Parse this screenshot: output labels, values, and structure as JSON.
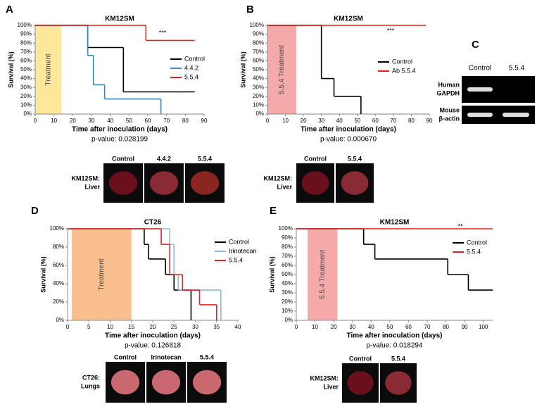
{
  "panels": [
    "A",
    "B",
    "C",
    "D",
    "E"
  ],
  "chart_data": [
    {
      "type": "step",
      "title": "KM12SM",
      "xlabel": "Time after inoculation (days)",
      "ylabel": "Survival (%)",
      "pvalue": "p-value:  0.028199",
      "annotation": "***",
      "treatment": {
        "label": "Treatment",
        "start": 0,
        "end": 14,
        "color": "#fde79a"
      },
      "xlim": [
        0,
        90
      ],
      "xticks": [
        0,
        10,
        20,
        30,
        40,
        50,
        60,
        70,
        80,
        90
      ],
      "ylim": [
        0,
        100
      ],
      "yticks": [
        {
          "value": 0,
          "label": "0%"
        },
        {
          "value": 10,
          "label": "10%"
        },
        {
          "value": 20,
          "label": "20%"
        },
        {
          "value": 30,
          "label": "30%"
        },
        {
          "value": 40,
          "label": "40%"
        },
        {
          "value": 50,
          "label": "50%"
        },
        {
          "value": 60,
          "label": "60%"
        },
        {
          "value": 70,
          "label": "70%"
        },
        {
          "value": 80,
          "label": "80%"
        },
        {
          "value": 90,
          "label": "90%"
        },
        {
          "value": 100,
          "label": "100%"
        }
      ],
      "series": [
        {
          "name": "Control",
          "color": "#000000",
          "x": [
            0,
            28,
            47,
            85
          ],
          "values": [
            100,
            75,
            25,
            25
          ]
        },
        {
          "name": "4.4.2",
          "color": "#3a87b5",
          "x": [
            0,
            28,
            31,
            37,
            67
          ],
          "values": [
            100,
            66,
            33,
            17,
            0
          ]
        },
        {
          "name": "5.5.4",
          "color": "#e8211c",
          "x": [
            0,
            59,
            85
          ],
          "values": [
            100,
            83,
            83
          ]
        }
      ]
    },
    {
      "type": "step",
      "title": "KM12SM",
      "xlabel": "Time after inoculation (days)",
      "ylabel": "Survival (%)",
      "pvalue": "p-value:  0.000670",
      "annotation": "***",
      "treatment": {
        "label": "5.5.4 Treatment",
        "start": 0,
        "end": 16,
        "color": "#f6a9a9"
      },
      "xlim": [
        0,
        90
      ],
      "xticks": [
        0,
        10,
        20,
        30,
        40,
        50,
        60,
        70,
        80,
        90
      ],
      "ylim": [
        0,
        100
      ],
      "yticks": [
        {
          "value": 0,
          "label": "0%"
        },
        {
          "value": 10,
          "label": "10%"
        },
        {
          "value": 20,
          "label": "20%"
        },
        {
          "value": 30,
          "label": "30%"
        },
        {
          "value": 40,
          "label": "40%"
        },
        {
          "value": 50,
          "label": "50%"
        },
        {
          "value": 60,
          "label": "60%"
        },
        {
          "value": 70,
          "label": "70%"
        },
        {
          "value": 80,
          "label": "80%"
        },
        {
          "value": 90,
          "label": "90%"
        },
        {
          "value": 100,
          "label": "100%"
        }
      ],
      "series": [
        {
          "name": "Control",
          "color": "#000000",
          "x": [
            0,
            30,
            37,
            52
          ],
          "values": [
            100,
            40,
            20,
            0
          ]
        },
        {
          "name": "Ab 5.5.4",
          "color": "#e8211c",
          "x": [
            0,
            88
          ],
          "values": [
            100,
            100
          ]
        }
      ]
    },
    {
      "type": "step",
      "title": "CT26",
      "xlabel": "Time after inoculation (days)",
      "ylabel": "Survival (%)",
      "pvalue": "p-value:  0.126818",
      "treatment": {
        "label": "Treatment",
        "start": 1,
        "end": 15,
        "color": "#f9bf8f"
      },
      "xlim": [
        0,
        40
      ],
      "xticks": [
        0,
        5,
        10,
        15,
        20,
        25,
        30,
        35,
        40
      ],
      "ylim": [
        0,
        100
      ],
      "yticks": [
        {
          "value": 0,
          "label": "0%"
        },
        {
          "value": 20,
          "label": "20%"
        },
        {
          "value": 40,
          "label": "40%"
        },
        {
          "value": 60,
          "label": "60%"
        },
        {
          "value": 80,
          "label": "80%"
        },
        {
          "value": 100,
          "label": "100%"
        }
      ],
      "series": [
        {
          "name": "Control",
          "color": "#000000",
          "x": [
            0,
            18,
            19,
            20,
            23,
            25,
            29
          ],
          "values": [
            100,
            83,
            67,
            67,
            50,
            33,
            0
          ]
        },
        {
          "name": "Irinotecan",
          "color": "#8db8de",
          "x": [
            0,
            24,
            25,
            26,
            32,
            36
          ],
          "values": [
            100,
            83,
            50,
            33,
            33,
            0
          ]
        },
        {
          "name": "5.5.4",
          "color": "#e8211c",
          "x": [
            0,
            22,
            24,
            27,
            31,
            35
          ],
          "values": [
            100,
            83,
            50,
            33,
            17,
            0
          ]
        }
      ]
    },
    {
      "type": "step",
      "title": "KM12SM",
      "xlabel": "Time after inoculation  (days)",
      "ylabel": "Survival (%)",
      "pvalue": "p-value:  0.018294",
      "annotation": "**",
      "treatment": {
        "label": "5.5.4 Treatment",
        "start": 6,
        "end": 22,
        "color": "#f6a9a9"
      },
      "xlim": [
        0,
        105
      ],
      "xticks": [
        0,
        10,
        20,
        30,
        40,
        50,
        60,
        70,
        80,
        90,
        100
      ],
      "ylim": [
        0,
        100
      ],
      "yticks": [
        {
          "value": 0,
          "label": "0%"
        },
        {
          "value": 10,
          "label": "10%"
        },
        {
          "value": 20,
          "label": "20%"
        },
        {
          "value": 30,
          "label": "30%"
        },
        {
          "value": 40,
          "label": "40%"
        },
        {
          "value": 50,
          "label": "50%"
        },
        {
          "value": 60,
          "label": "60%"
        },
        {
          "value": 70,
          "label": "70%"
        },
        {
          "value": 80,
          "label": "80%"
        },
        {
          "value": 90,
          "label": "90%"
        },
        {
          "value": 100,
          "label": "100%"
        }
      ],
      "series": [
        {
          "name": "Control",
          "color": "#000000",
          "x": [
            0,
            36,
            42,
            81,
            92,
            105
          ],
          "values": [
            100,
            83,
            67,
            50,
            33,
            33
          ]
        },
        {
          "name": "5.5.4",
          "color": "#e8211c",
          "x": [
            0,
            105
          ],
          "values": [
            100,
            100
          ]
        }
      ]
    }
  ],
  "photos": [
    {
      "row_label": [
        "KM12SM:",
        "Liver"
      ],
      "columns": [
        "Control",
        "4.4.2",
        "5.5.4"
      ]
    },
    {
      "row_label": [
        "KM12SM:",
        "Liver"
      ],
      "columns": [
        "Control",
        "5.5.4"
      ]
    },
    {
      "row_label": [
        "CT26:",
        "Lungs"
      ],
      "columns": [
        "Control",
        "Irinotecan",
        "5.5.4"
      ]
    },
    {
      "row_label": [
        "KM12SM:",
        "Liver"
      ],
      "columns": [
        "Control",
        "5.5.4"
      ]
    }
  ],
  "gel": {
    "columns": [
      "Control",
      "5.5.4"
    ],
    "rows": [
      [
        "Human",
        "GAPDH"
      ],
      [
        "Mouse",
        "β-actin"
      ]
    ]
  }
}
